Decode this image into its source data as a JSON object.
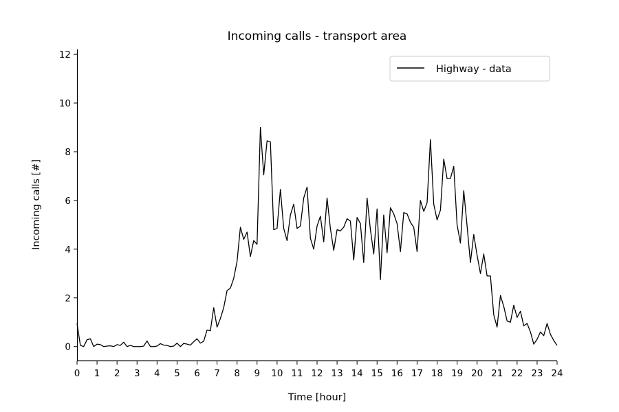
{
  "chart_data": {
    "type": "line",
    "title": "Incoming calls - transport area",
    "xlabel": "Time [hour]",
    "ylabel": "Incoming calls [#]",
    "xlim": [
      0,
      24
    ],
    "ylim": [
      -0.6,
      12.2
    ],
    "xticks": [
      "0",
      "1",
      "2",
      "3",
      "4",
      "5",
      "6",
      "7",
      "8",
      "9",
      "10",
      "11",
      "12",
      "13",
      "14",
      "15",
      "16",
      "17",
      "18",
      "19",
      "20",
      "21",
      "22",
      "23",
      "24"
    ],
    "yticks": [
      "0",
      "2",
      "4",
      "6",
      "8",
      "10",
      "12"
    ],
    "grid": false,
    "legend_position": "top-right",
    "series": [
      {
        "name": "Highway - data",
        "color": "#000000",
        "x": [
          0,
          0.167,
          0.333,
          0.5,
          0.667,
          0.833,
          1,
          1.167,
          1.333,
          1.5,
          1.667,
          1.833,
          2,
          2.167,
          2.333,
          2.5,
          2.667,
          2.833,
          3,
          3.167,
          3.333,
          3.5,
          3.667,
          3.833,
          4,
          4.167,
          4.333,
          4.5,
          4.667,
          4.833,
          5,
          5.167,
          5.333,
          5.5,
          5.667,
          5.833,
          6,
          6.167,
          6.333,
          6.5,
          6.667,
          6.833,
          7,
          7.167,
          7.333,
          7.5,
          7.667,
          7.833,
          8,
          8.167,
          8.333,
          8.5,
          8.667,
          8.833,
          9,
          9.167,
          9.333,
          9.5,
          9.667,
          9.833,
          10,
          10.167,
          10.333,
          10.5,
          10.667,
          10.833,
          11,
          11.167,
          11.333,
          11.5,
          11.667,
          11.833,
          12,
          12.167,
          12.333,
          12.5,
          12.667,
          12.833,
          13,
          13.167,
          13.333,
          13.5,
          13.667,
          13.833,
          14,
          14.167,
          14.333,
          14.5,
          14.667,
          14.833,
          15,
          15.167,
          15.333,
          15.5,
          15.667,
          15.833,
          16,
          16.167,
          16.333,
          16.5,
          16.667,
          16.833,
          17,
          17.167,
          17.333,
          17.5,
          17.667,
          17.833,
          18,
          18.167,
          18.333,
          18.5,
          18.667,
          18.833,
          19,
          19.167,
          19.333,
          19.5,
          19.667,
          19.833,
          20,
          20.167,
          20.333,
          20.5,
          20.667,
          20.833,
          21,
          21.167,
          21.333,
          21.5,
          21.667,
          21.833,
          22,
          22.167,
          22.333,
          22.5,
          22.667,
          22.833,
          23,
          23.167,
          23.333,
          23.5,
          23.667,
          23.833,
          24
        ],
        "values": [
          0.95,
          0.05,
          0.0,
          0.28,
          0.32,
          0.0,
          0.1,
          0.08,
          0.0,
          0.02,
          0.03,
          0.0,
          0.08,
          0.05,
          0.18,
          0.0,
          0.05,
          0.0,
          0.0,
          0.0,
          0.02,
          0.23,
          0.0,
          0.0,
          0.02,
          0.12,
          0.06,
          0.05,
          0.0,
          0.02,
          0.14,
          0.0,
          0.13,
          0.1,
          0.06,
          0.2,
          0.32,
          0.14,
          0.22,
          0.68,
          0.65,
          1.6,
          0.8,
          1.15,
          1.6,
          2.3,
          2.4,
          2.8,
          3.5,
          4.9,
          4.4,
          4.7,
          3.7,
          4.35,
          4.2,
          9.0,
          7.05,
          8.45,
          8.4,
          4.8,
          4.85,
          6.45,
          4.85,
          4.35,
          5.4,
          5.85,
          4.85,
          4.95,
          6.1,
          6.55,
          4.45,
          4.0,
          4.95,
          5.35,
          4.3,
          6.1,
          4.85,
          3.95,
          4.8,
          4.75,
          4.9,
          5.25,
          5.15,
          3.55,
          5.3,
          5.05,
          3.45,
          6.1,
          4.8,
          3.8,
          5.65,
          2.75,
          5.4,
          3.85,
          5.7,
          5.45,
          5.05,
          3.9,
          5.5,
          5.45,
          5.1,
          4.9,
          3.9,
          6.0,
          5.55,
          5.9,
          8.5,
          5.85,
          5.2,
          5.6,
          7.7,
          6.9,
          6.9,
          7.4,
          5.0,
          4.25,
          6.4,
          4.95,
          3.45,
          4.6,
          3.75,
          3.0,
          3.8,
          2.9,
          2.9,
          1.3,
          0.8,
          2.1,
          1.65,
          1.05,
          1.0,
          1.7,
          1.2,
          1.45,
          0.85,
          0.95,
          0.6,
          0.1,
          0.3,
          0.6,
          0.45,
          0.95,
          0.5,
          0.25,
          0.05
        ]
      }
    ]
  }
}
